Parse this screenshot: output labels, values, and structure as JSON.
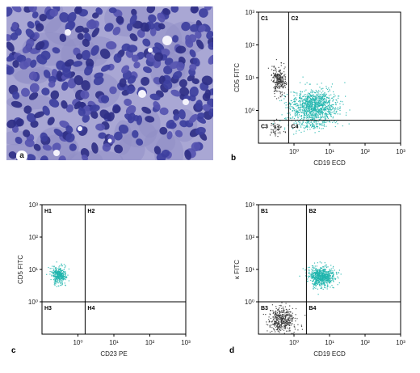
{
  "panels": {
    "a": {
      "letter": "a"
    },
    "b": {
      "letter": "b"
    },
    "c": {
      "letter": "c"
    },
    "d": {
      "letter": "d"
    }
  },
  "colors": {
    "cluster_cyan": "#1fb5ad",
    "cluster_gray": "#333333",
    "axis": "#000000",
    "cell_violet": "#3d3f9e",
    "background_lilac": "#a9a7d4"
  },
  "chart_data": [
    {
      "id": "b",
      "type": "scatter",
      "title": "",
      "xlabel": "CD19 ECD",
      "ylabel": "CD5 FITC",
      "scale": "log",
      "xlim": [
        -1,
        3
      ],
      "ylim": [
        -1,
        3
      ],
      "xticks": [
        "10⁰",
        "10¹",
        "10²",
        "10³"
      ],
      "yticks": [
        "10⁰",
        "10¹",
        "10²",
        "10³"
      ],
      "gate": {
        "x": -0.15,
        "y": -0.3
      },
      "quadrants": [
        "C1",
        "C2",
        "C3",
        "C4"
      ],
      "clusters": [
        {
          "color": "gray",
          "center": [
            -0.45,
            0.95
          ],
          "spread": [
            0.1,
            0.22
          ],
          "count": 260
        },
        {
          "color": "gray",
          "center": [
            -0.5,
            -0.55
          ],
          "spread": [
            0.08,
            0.1
          ],
          "count": 60
        },
        {
          "color": "cyan",
          "center": [
            0.55,
            0.15
          ],
          "spread": [
            0.32,
            0.24
          ],
          "count": 1100
        },
        {
          "color": "cyan",
          "center": [
            0.45,
            -0.4
          ],
          "spread": [
            0.35,
            0.12
          ],
          "count": 120
        }
      ]
    },
    {
      "id": "c",
      "type": "scatter",
      "title": "",
      "xlabel": "CD23 PE",
      "ylabel": "CD5 FITC",
      "scale": "log",
      "xlim": [
        -1,
        3
      ],
      "ylim": [
        -1,
        3
      ],
      "xticks": [
        "10⁰",
        "10¹",
        "10²",
        "10³"
      ],
      "yticks": [
        "10⁰",
        "10¹",
        "10²",
        "10³"
      ],
      "gate": {
        "x": 0.2,
        "y": 0.0
      },
      "quadrants": [
        "H1",
        "H2",
        "H3",
        "H4"
      ],
      "clusters": [
        {
          "color": "cyan",
          "center": [
            -0.55,
            0.85
          ],
          "spread": [
            0.1,
            0.14
          ],
          "count": 380
        }
      ]
    },
    {
      "id": "d",
      "type": "scatter",
      "title": "",
      "xlabel": "CD19 ECD",
      "ylabel": "κ FITC",
      "scale": "log",
      "xlim": [
        -1,
        3
      ],
      "ylim": [
        -1,
        3
      ],
      "xticks": [
        "10⁰",
        "10¹",
        "10²",
        "10³"
      ],
      "yticks": [
        "10⁰",
        "10¹",
        "10²",
        "10³"
      ],
      "gate": {
        "x": 0.35,
        "y": 0.0
      },
      "quadrants": [
        "B1",
        "B2",
        "B3",
        "B4"
      ],
      "clusters": [
        {
          "color": "cyan",
          "center": [
            0.75,
            0.8
          ],
          "spread": [
            0.18,
            0.15
          ],
          "count": 750
        },
        {
          "color": "gray",
          "center": [
            -0.35,
            -0.55
          ],
          "spread": [
            0.18,
            0.18
          ],
          "count": 420
        }
      ]
    }
  ]
}
